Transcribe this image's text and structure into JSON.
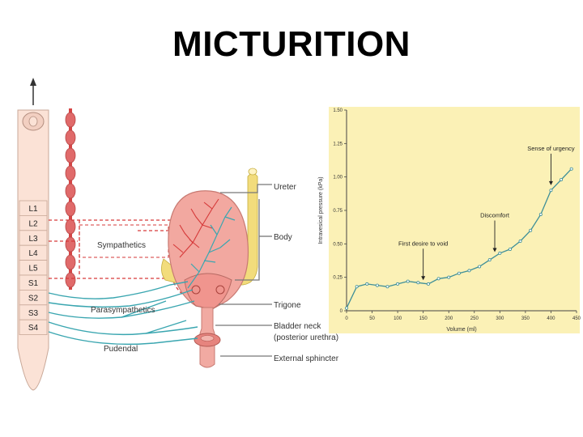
{
  "title": "MICTURITION",
  "anatomy": {
    "segments": [
      "L1",
      "L2",
      "L3",
      "L4",
      "L5",
      "S1",
      "S2",
      "S3",
      "S4"
    ],
    "nerve_labels": {
      "sympathetics": "Sympathetics",
      "parasympathetics": "Parasympathetics",
      "pudendal": "Pudendal"
    },
    "structure_labels": {
      "ureter": "Ureter",
      "body": "Body",
      "trigone": "Trigone",
      "bladder_neck": "Bladder neck",
      "bladder_neck_sub": "(posterior urethra)",
      "external_sphincter": "External sphincter"
    },
    "colors": {
      "sympathetic": "#d63a3a",
      "parasympathetic": "#3aa6b0",
      "bladder": "#f0a9a0"
    }
  },
  "chart_data": {
    "type": "line",
    "xlabel": "Volume (ml)",
    "ylabel": "Intravesical pressure (kPa)",
    "xlim": [
      0,
      450
    ],
    "ylim": [
      0,
      1.5
    ],
    "xticks": [
      0,
      50,
      100,
      150,
      200,
      250,
      300,
      350,
      400,
      450
    ],
    "yticks": [
      "0",
      "0.25",
      "0.50",
      "0.75",
      "1.00",
      "1.25",
      "1.50"
    ],
    "series": [
      {
        "x": [
          0,
          20,
          40,
          60,
          80,
          100,
          120,
          140,
          160,
          180,
          200,
          220,
          240,
          260,
          280,
          300,
          320,
          340,
          360,
          380,
          400,
          420,
          440
        ],
        "y": [
          0.02,
          0.18,
          0.2,
          0.19,
          0.18,
          0.2,
          0.22,
          0.21,
          0.2,
          0.24,
          0.25,
          0.28,
          0.3,
          0.33,
          0.38,
          0.43,
          0.46,
          0.52,
          0.6,
          0.72,
          0.9,
          0.98,
          1.06
        ]
      }
    ],
    "annotations": [
      {
        "text": "First desire to void",
        "x": 150,
        "y": 0.21
      },
      {
        "text": "Discomfort",
        "x": 290,
        "y": 0.42
      },
      {
        "text": "Sense of urgency",
        "x": 400,
        "y": 0.92
      }
    ],
    "background": "#fbf1b6"
  }
}
